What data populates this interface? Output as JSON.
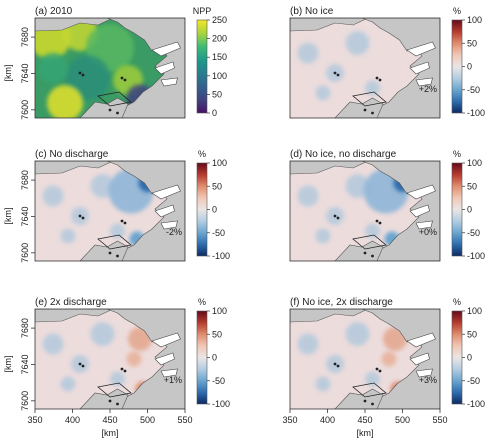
{
  "panels": [
    {
      "label": "(a) 2010",
      "unit": "NPP",
      "ticks": [
        "250",
        "200",
        "150",
        "100",
        "50",
        "0"
      ],
      "scale": "viridis",
      "change": ""
    },
    {
      "label": "(b) No ice",
      "unit": "%",
      "ticks": [
        "100",
        "50",
        "0",
        "-50",
        "-100"
      ],
      "scale": "div",
      "change": "+2%"
    },
    {
      "label": "(c) No discharge",
      "unit": "%",
      "ticks": [
        "100",
        "50",
        "0",
        "-50",
        "-100"
      ],
      "scale": "div",
      "change": "-2%"
    },
    {
      "label": "(d) No ice, no discharge",
      "unit": "%",
      "ticks": [
        "100",
        "50",
        "0",
        "-50",
        "-100"
      ],
      "scale": "div",
      "change": "+0%"
    },
    {
      "label": "(e) 2x discharge",
      "unit": "%",
      "ticks": [
        "100",
        "50",
        "0",
        "-50",
        "-100"
      ],
      "scale": "div",
      "change": "+1%"
    },
    {
      "label": "(f) No ice, 2x discharge",
      "unit": "%",
      "ticks": [
        "100",
        "50",
        "0",
        "-50",
        "-100"
      ],
      "scale": "div",
      "change": "+3%"
    }
  ],
  "y_ticks": [
    "7680",
    "7640",
    "7600"
  ],
  "y_label": "[km]",
  "x_ticks": [
    "350",
    "400",
    "450",
    "500",
    "550"
  ],
  "x_label": "[km]",
  "colors": {
    "land": "#c6c6c6",
    "frame": "#333333",
    "neutral": "#ecdcdc",
    "viridis": [
      "#f4e626",
      "#a9d53c",
      "#3fbb76",
      "#1e9a8a",
      "#277f8e",
      "#34618d",
      "#3f437f",
      "#461064"
    ],
    "diverging": [
      "#650a1c",
      "#b53b2f",
      "#e08c6d",
      "#f1c7b6",
      "#ebe5e5",
      "#b3cde2",
      "#6ba6cf",
      "#2e6daf",
      "#0c2a62"
    ]
  }
}
